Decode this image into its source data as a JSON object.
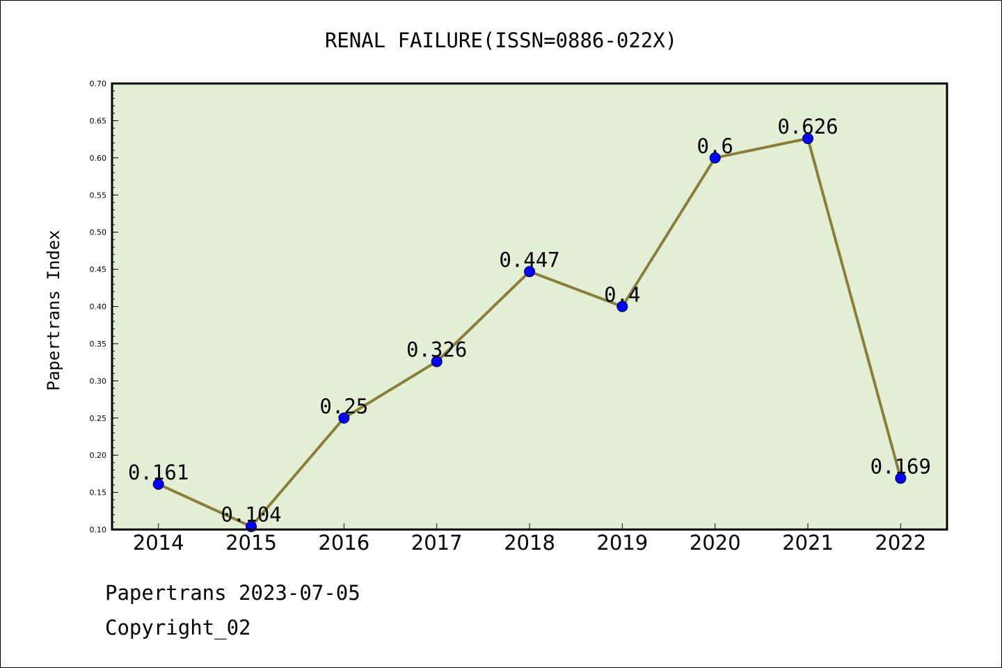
{
  "chart_data": {
    "type": "line",
    "title": "RENAL FAILURE(ISSN=0886-022X)",
    "xlabel": "",
    "ylabel": "Papertrans Index",
    "categories": [
      "2014",
      "2015",
      "2016",
      "2017",
      "2018",
      "2019",
      "2020",
      "2021",
      "2022"
    ],
    "values": [
      0.161,
      0.104,
      0.25,
      0.326,
      0.447,
      0.4,
      0.6,
      0.626,
      0.169
    ],
    "data_labels": [
      "0.161",
      "0.104",
      "0.25",
      "0.326",
      "0.447",
      "0.4",
      "0.6",
      "0.626",
      "0.169"
    ],
    "ylim": [
      0.1,
      0.7
    ],
    "yticks": [
      "0.10",
      "0.15",
      "0.20",
      "0.25",
      "0.30",
      "0.35",
      "0.40",
      "0.45",
      "0.50",
      "0.55",
      "0.60",
      "0.65",
      "0.70"
    ],
    "grid": false,
    "legend": "none",
    "colors": {
      "plot_background": "#e2efd5",
      "line": "#8b7d3a",
      "marker": "#0000ff",
      "axis": "#000000"
    }
  },
  "footer": {
    "line1": "Papertrans 2023-07-05",
    "line2": "Copyright_02"
  }
}
